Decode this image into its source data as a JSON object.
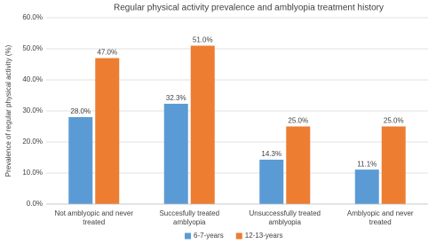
{
  "chart_data": {
    "type": "bar",
    "title": "Regular physical activity prevalence and amblyopia treatment history",
    "y_label": "Prevalence of regular physical activity (%)",
    "categories": [
      "Not amblyopic and never treated",
      "Succesfully treated amblyopia",
      "Unsuccessfully treated amblyopia",
      "Amblyopic and never treated"
    ],
    "series": [
      {
        "name": "6-7-years",
        "color": "#5b9bd5",
        "values": [
          28.0,
          32.3,
          14.3,
          11.1
        ],
        "value_labels": [
          "28.0%",
          "32.3%",
          "14.3%",
          "11.1%"
        ]
      },
      {
        "name": "12-13-years",
        "color": "#ed7d31",
        "values": [
          47.0,
          51.0,
          25.0,
          25.0
        ],
        "value_labels": [
          "47.0%",
          "51.0%",
          "25.0%",
          "25.0%"
        ]
      }
    ],
    "ylim": [
      0,
      60
    ],
    "yticks": [
      {
        "value": 0,
        "label": "0.0%"
      },
      {
        "value": 10,
        "label": "10.0%"
      },
      {
        "value": 20,
        "label": "20.0%"
      },
      {
        "value": 30,
        "label": "30.0%"
      },
      {
        "value": 40,
        "label": "40.0%"
      },
      {
        "value": 50,
        "label": "50.0%"
      },
      {
        "value": 60,
        "label": "60.0%"
      }
    ],
    "grid": true,
    "legend": "bottom"
  }
}
